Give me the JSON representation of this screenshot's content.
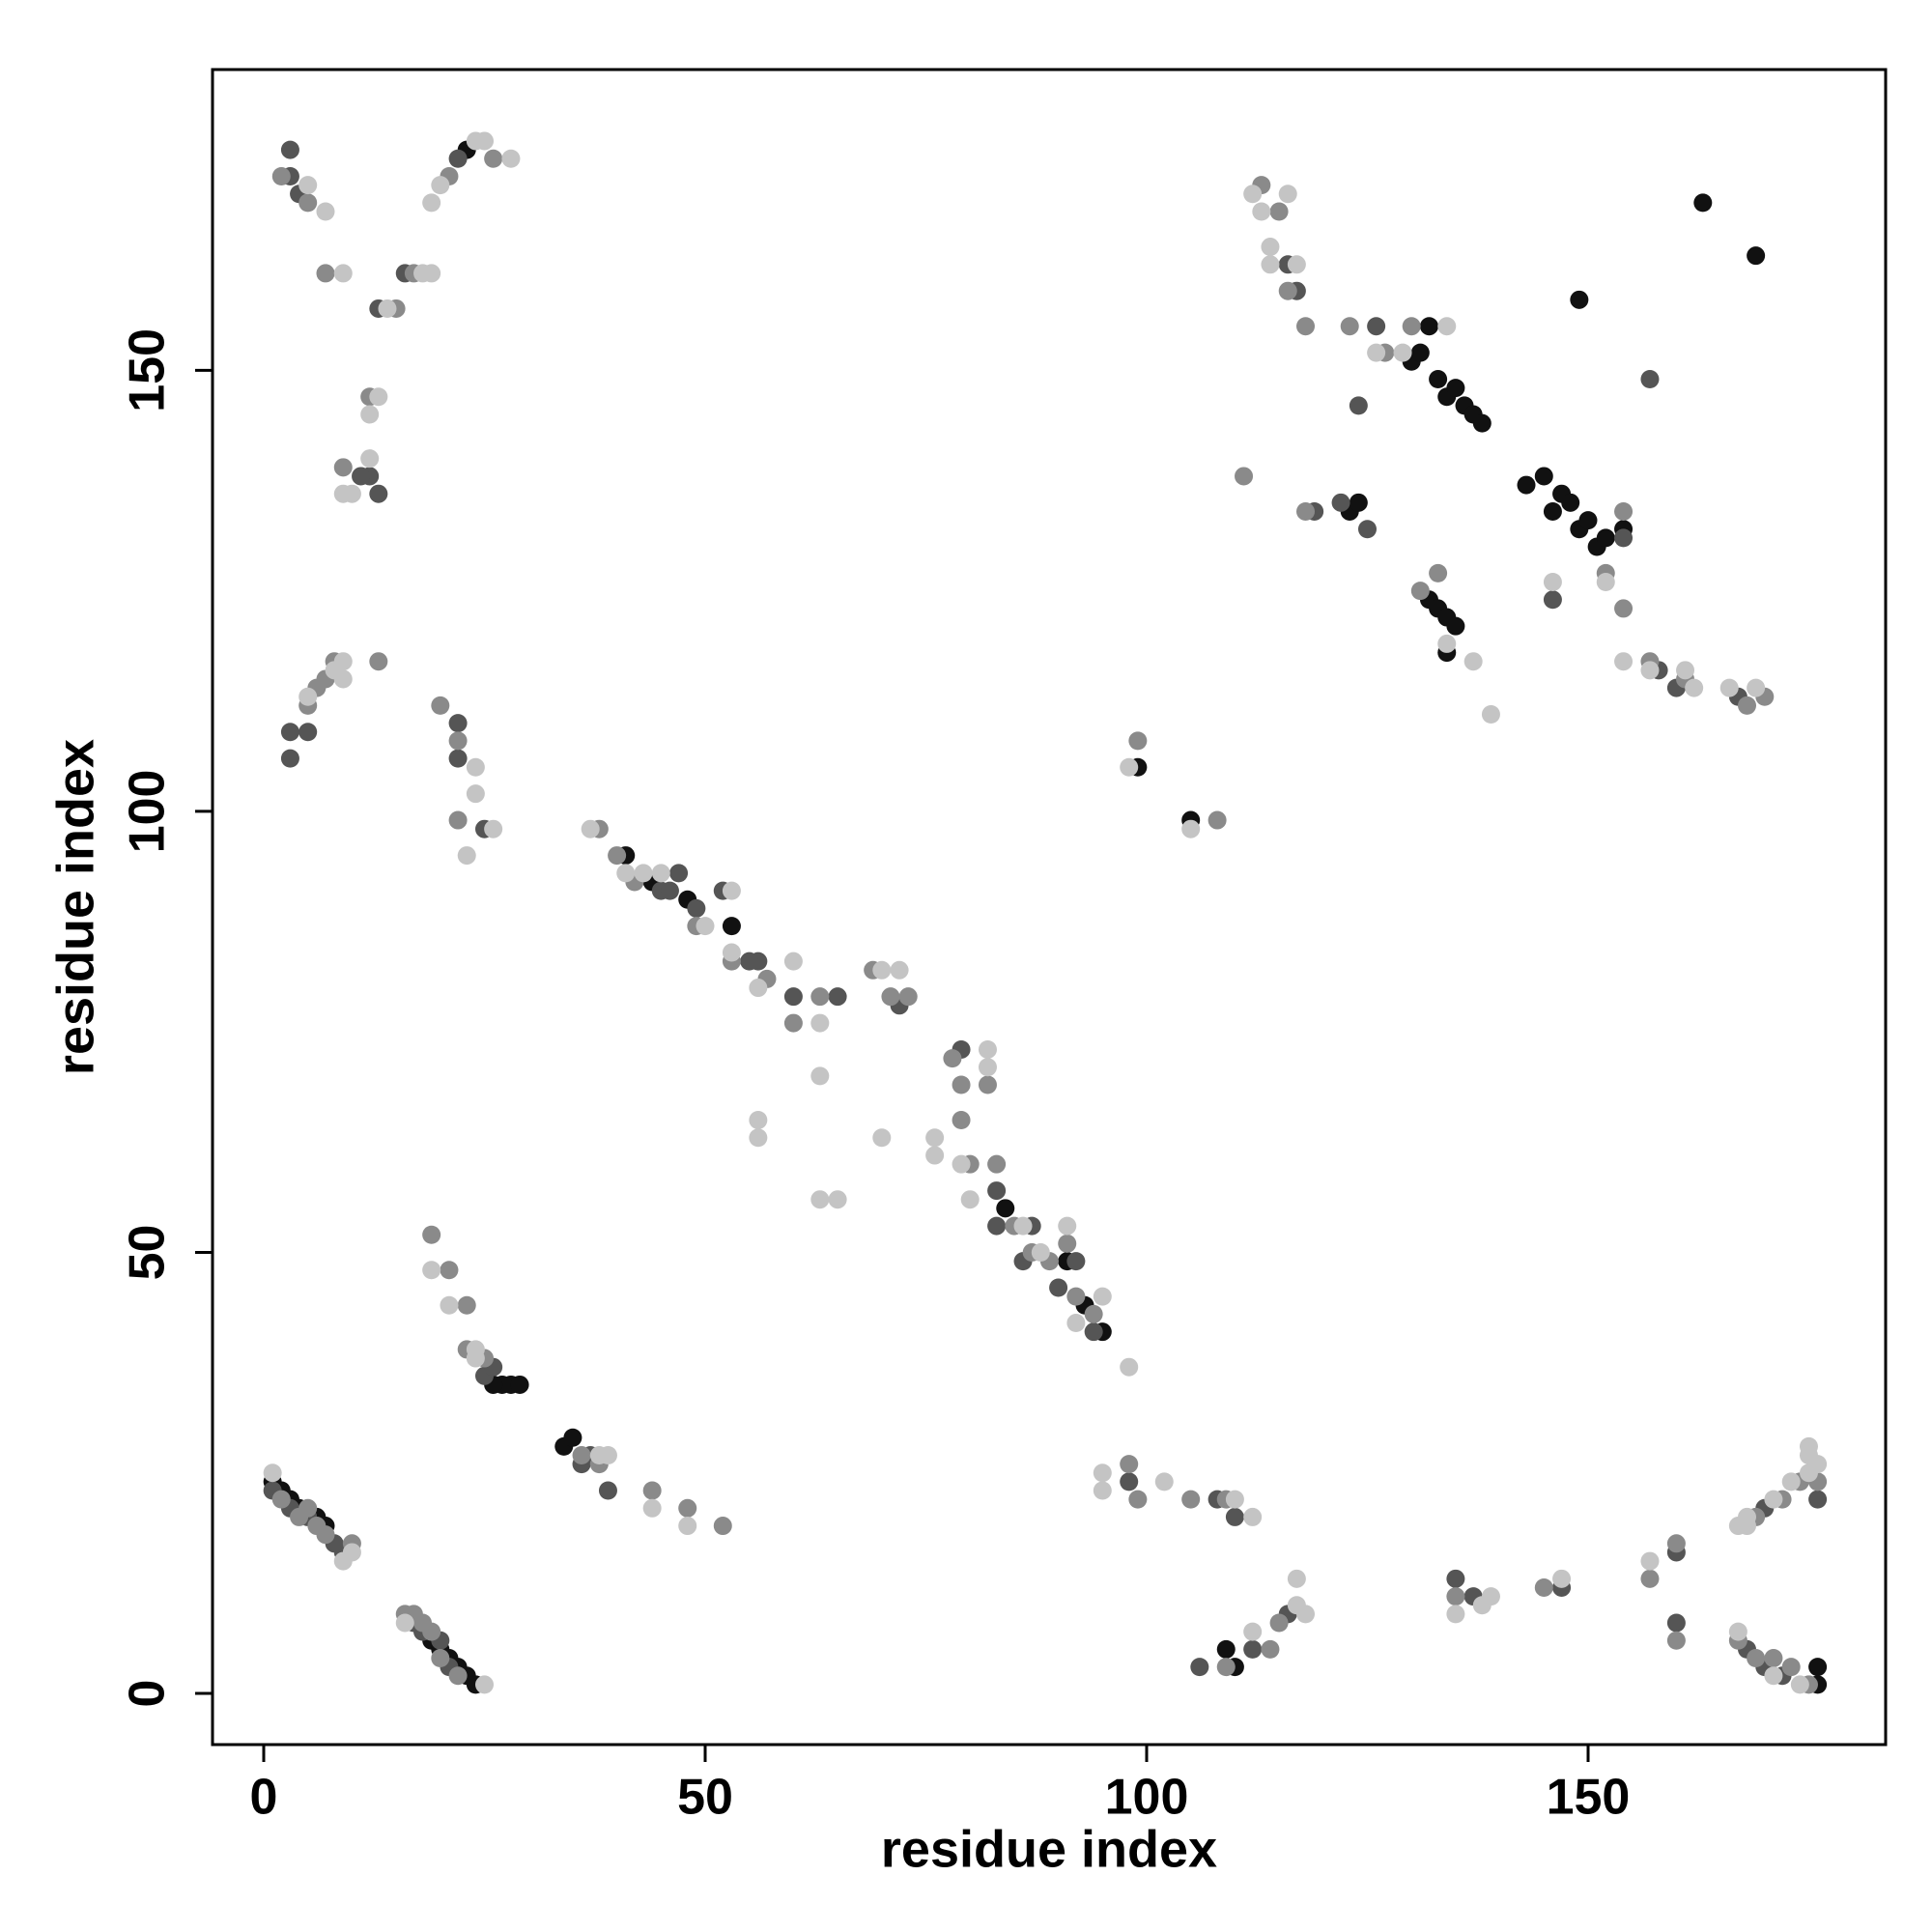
{
  "chart_data": {
    "type": "scatter",
    "x_label": "residue index",
    "y_label": "residue index",
    "xlim": [
      -5.8,
      183.7
    ],
    "ylim": [
      -5.8,
      184.1
    ],
    "xticks": [
      0,
      50,
      100,
      150
    ],
    "yticks": [
      0,
      50,
      100,
      150
    ],
    "grid": false,
    "series": [
      {
        "color": "#111111",
        "x": [
          1,
          2,
          3,
          4,
          6,
          7,
          19,
          20,
          21,
          22,
          23,
          24,
          27,
          28,
          29,
          26,
          34,
          35,
          41,
          44,
          48,
          53,
          84,
          91,
          93,
          95,
          105,
          99,
          123,
          124,
          130,
          131,
          132,
          133,
          134,
          135,
          136,
          137,
          138,
          132,
          133,
          134,
          135,
          134,
          143,
          145,
          146,
          147,
          148,
          149,
          150,
          151,
          152,
          154,
          163,
          169,
          149,
          176,
          176,
          23,
          110,
          109
        ],
        "values": [
          24,
          23,
          22,
          21,
          20,
          19,
          6,
          5,
          4,
          3,
          2,
          1,
          35,
          35,
          35,
          35,
          28,
          29,
          95,
          92,
          90,
          87,
          55,
          49,
          44,
          41,
          99,
          105,
          134,
          135,
          151,
          152,
          155,
          149,
          147,
          148,
          146,
          145,
          144,
          124,
          123,
          122,
          121,
          118,
          137,
          138,
          134,
          136,
          135,
          132,
          133,
          130,
          131,
          132,
          169,
          163,
          158,
          3,
          1,
          175,
          3,
          5
        ]
      },
      {
        "color": "#555555",
        "x": [
          1,
          3,
          5,
          8,
          9,
          17,
          18,
          20,
          21,
          25,
          26,
          36,
          37,
          39,
          3,
          3,
          5,
          22,
          22,
          25,
          45,
          46,
          47,
          49,
          52,
          56,
          55,
          60,
          65,
          72,
          79,
          83,
          83,
          86,
          87,
          90,
          92,
          94,
          98,
          108,
          110,
          106,
          112,
          116,
          135,
          137,
          147,
          160,
          160,
          170,
          176,
          168,
          170,
          172,
          117,
          116,
          124,
          126,
          122,
          125,
          119,
          146,
          154,
          157,
          158,
          160,
          167,
          12,
          11,
          13,
          16,
          3,
          4,
          22,
          3,
          13
        ],
        "values": [
          23,
          21,
          20,
          17,
          16,
          8,
          7,
          6,
          3,
          36,
          37,
          26,
          27,
          23,
          109,
          106,
          109,
          110,
          106,
          98,
          91,
          91,
          93,
          89,
          91,
          83,
          83,
          79,
          79,
          78,
          73,
          57,
          53,
          49,
          53,
          46,
          49,
          41,
          24,
          22,
          20,
          3,
          5,
          9,
          13,
          11,
          12,
          16,
          8,
          21,
          22,
          5,
          3,
          2,
          159,
          162,
          146,
          155,
          135,
          132,
          134,
          124,
          131,
          149,
          116,
          114,
          113,
          138,
          138,
          157,
          161,
          172,
          170,
          174,
          175,
          136
        ]
      },
      {
        "color": "#8a8a8a",
        "x": [
          2,
          4,
          5,
          6,
          7,
          10,
          16,
          17,
          18,
          19,
          20,
          22,
          19,
          21,
          23,
          23,
          25,
          36,
          38,
          44,
          48,
          52,
          5,
          6,
          7,
          20,
          22,
          22,
          38,
          40,
          42,
          49,
          53,
          57,
          60,
          63,
          69,
          71,
          73,
          78,
          79,
          79,
          80,
          82,
          83,
          85,
          87,
          89,
          91,
          92,
          94,
          98,
          99,
          105,
          109,
          109,
          114,
          115,
          135,
          145,
          157,
          160,
          160,
          169,
          172,
          174,
          176,
          167,
          169,
          171,
          173,
          175,
          99,
          108,
          111,
          113,
          115,
          118,
          116,
          118,
          123,
          127,
          130,
          131,
          133,
          154,
          154,
          152,
          157,
          161,
          168,
          170,
          9,
          12,
          17,
          15,
          7,
          5,
          2,
          21,
          26,
          13,
          8
        ],
        "values": [
          22,
          20,
          21,
          19,
          18,
          17,
          9,
          9,
          8,
          7,
          4,
          2,
          52,
          48,
          44,
          39,
          38,
          27,
          26,
          23,
          21,
          19,
          112,
          114,
          115,
          112,
          108,
          99,
          98,
          95,
          92,
          87,
          83,
          81,
          76,
          79,
          82,
          79,
          79,
          72,
          69,
          65,
          60,
          69,
          60,
          53,
          50,
          49,
          51,
          45,
          43,
          26,
          22,
          22,
          22,
          3,
          5,
          8,
          11,
          12,
          13,
          17,
          6,
          20,
          22,
          24,
          24,
          6,
          4,
          4,
          3,
          1,
          108,
          99,
          138,
          171,
          168,
          155,
          159,
          134,
          155,
          152,
          155,
          125,
          127,
          134,
          123,
          127,
          117,
          115,
          112,
          113,
          139,
          147,
          161,
          157,
          161,
          169,
          172,
          172,
          174,
          117,
          117
        ]
      },
      {
        "color": "#c4c4c4",
        "x": [
          1,
          9,
          10,
          25,
          16,
          19,
          21,
          24,
          24,
          38,
          39,
          44,
          48,
          5,
          8,
          9,
          24,
          24,
          23,
          26,
          37,
          41,
          43,
          45,
          50,
          53,
          53,
          56,
          60,
          63,
          63,
          70,
          72,
          56,
          56,
          63,
          65,
          70,
          76,
          76,
          79,
          80,
          82,
          82,
          86,
          88,
          91,
          92,
          95,
          98,
          95,
          95,
          102,
          110,
          112,
          117,
          117,
          118,
          112,
          135,
          138,
          139,
          147,
          157,
          167,
          168,
          168,
          171,
          173,
          175,
          175,
          175,
          176,
          167,
          171,
          174,
          98,
          105,
          112,
          116,
          113,
          114,
          114,
          117,
          126,
          129,
          134,
          134,
          137,
          139,
          146,
          152,
          154,
          157,
          161,
          162,
          166,
          169,
          13,
          10,
          9,
          12,
          18,
          19,
          9,
          14,
          5,
          7,
          19,
          20,
          24,
          25,
          28,
          9,
          12
        ],
        "values": [
          25,
          15,
          16,
          1,
          8,
          48,
          44,
          38,
          39,
          27,
          27,
          21,
          19,
          113,
          116,
          117,
          102,
          105,
          95,
          98,
          98,
          93,
          93,
          93,
          87,
          91,
          84,
          80,
          83,
          76,
          70,
          82,
          82,
          65,
          63,
          56,
          56,
          63,
          63,
          61,
          60,
          56,
          73,
          71,
          53,
          50,
          53,
          42,
          45,
          37,
          23,
          25,
          24,
          22,
          20,
          13,
          10,
          9,
          7,
          9,
          10,
          11,
          13,
          15,
          19,
          19,
          20,
          22,
          24,
          25,
          27,
          28,
          26,
          7,
          2,
          1,
          105,
          98,
          170,
          170,
          168,
          164,
          162,
          162,
          152,
          152,
          155,
          119,
          117,
          111,
          126,
          126,
          117,
          116,
          116,
          114,
          114,
          114,
          147,
          136,
          136,
          140,
          161,
          161,
          161,
          157,
          171,
          168,
          169,
          171,
          176,
          176,
          174,
          115,
          145
        ]
      }
    ]
  }
}
